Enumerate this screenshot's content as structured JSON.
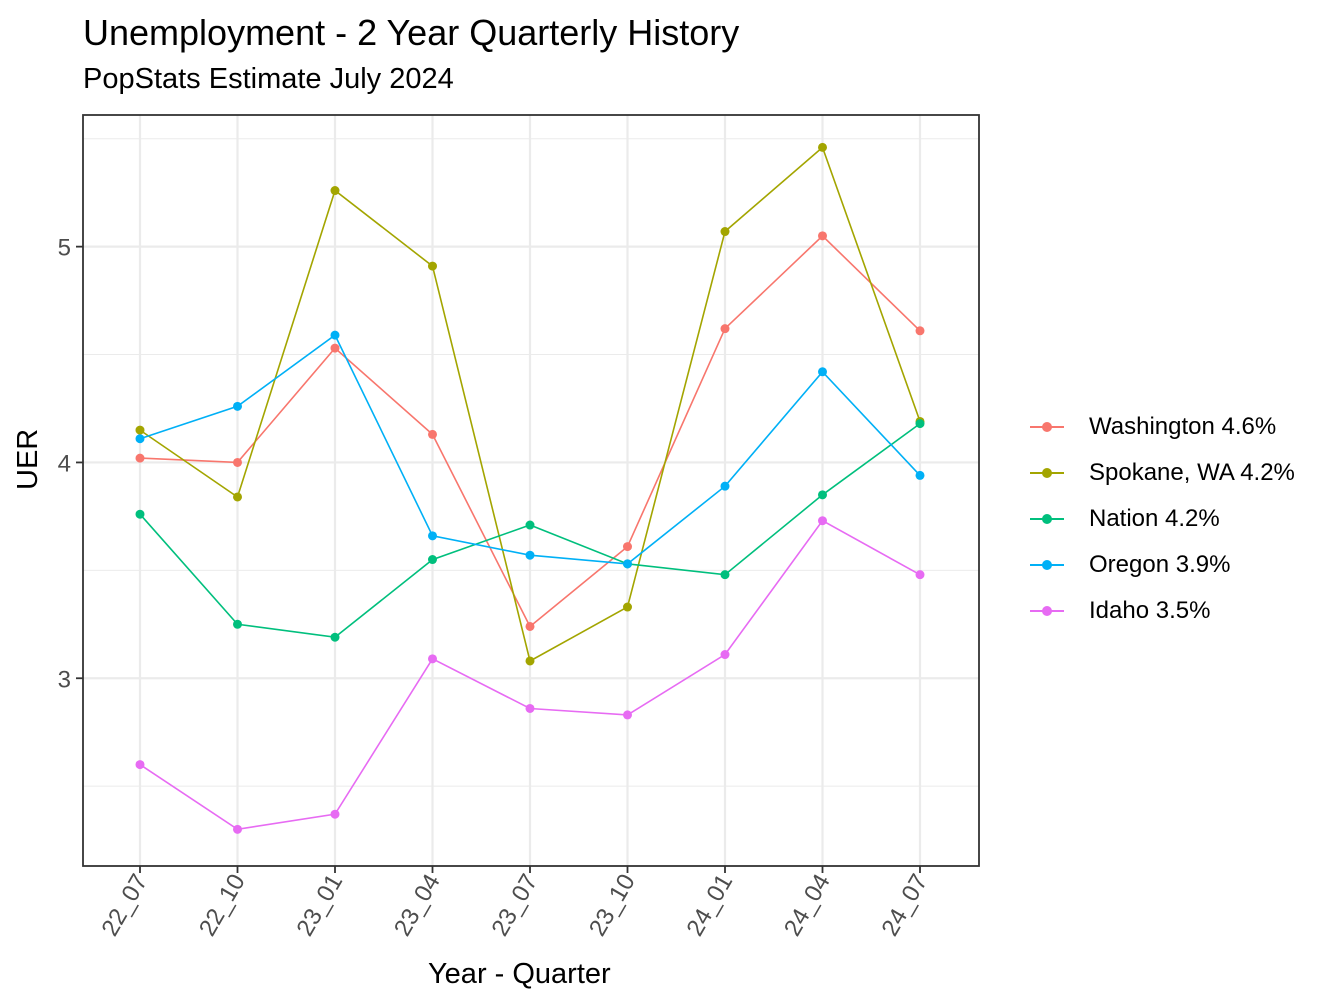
{
  "chart_data": {
    "type": "line",
    "title": "Unemployment - 2 Year Quarterly History",
    "subtitle": "PopStats Estimate July 2024",
    "xlabel": "Year - Quarter",
    "ylabel": "UER",
    "categories": [
      "22_07",
      "22_10",
      "23_01",
      "23_04",
      "23_07",
      "23_10",
      "24_01",
      "24_04",
      "24_07"
    ],
    "yticks": [
      3,
      4,
      5
    ],
    "ylim": [
      2.13,
      5.61
    ],
    "grid": true,
    "legend_position": "right",
    "series": [
      {
        "name": "Washington 4.6%",
        "color": "#F8766D",
        "values": [
          4.02,
          4.0,
          4.53,
          4.13,
          3.24,
          3.61,
          4.62,
          5.05,
          4.61
        ]
      },
      {
        "name": "Spokane, WA 4.2%",
        "color": "#A3A500",
        "values": [
          4.15,
          3.84,
          5.26,
          4.91,
          3.08,
          3.33,
          5.07,
          5.46,
          4.19
        ]
      },
      {
        "name": "Nation 4.2%",
        "color": "#00BF7D",
        "values": [
          3.76,
          3.25,
          3.19,
          3.55,
          3.71,
          3.53,
          3.48,
          3.85,
          4.18
        ]
      },
      {
        "name": "Oregon 3.9%",
        "color": "#00B0F6",
        "values": [
          4.11,
          4.26,
          4.59,
          3.66,
          3.57,
          3.53,
          3.89,
          4.42,
          3.94
        ]
      },
      {
        "name": "Idaho 3.5%",
        "color": "#E76BF3",
        "values": [
          2.6,
          2.3,
          2.37,
          3.09,
          2.86,
          2.83,
          3.11,
          3.73,
          3.48
        ]
      }
    ]
  }
}
